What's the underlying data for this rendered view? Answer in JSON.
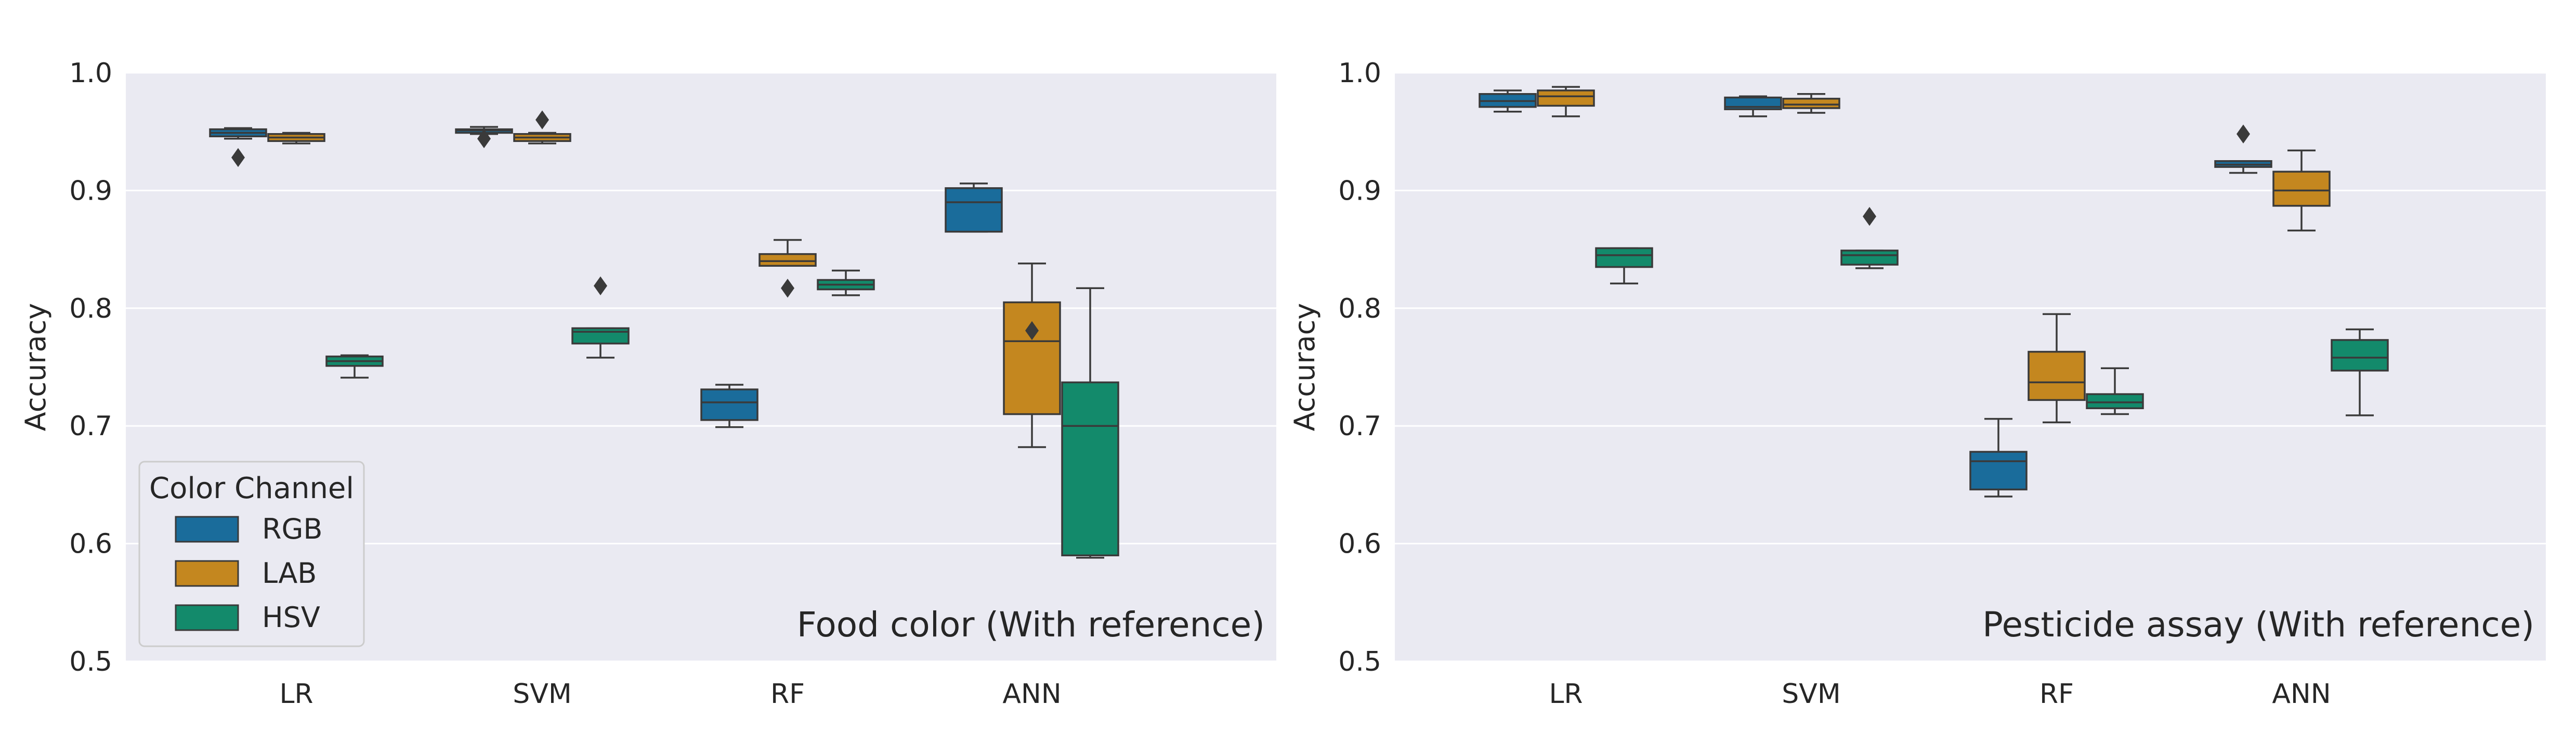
{
  "colors": {
    "RGB": "#1a6c9b",
    "LAB": "#c4871f",
    "HSV": "#138a6b",
    "plot_bg": "#eaeaf2",
    "grid": "#ffffff",
    "edge": "#3a3a3a"
  },
  "legend": {
    "title": "Color Channel",
    "entries": [
      "RGB",
      "LAB",
      "HSV"
    ],
    "placement": "lower-left of left panel"
  },
  "chart_data": [
    {
      "type": "box",
      "annotation": "Food color (With reference)",
      "ylabel": "Accuracy",
      "xlabel": "",
      "ylim": [
        0.5,
        1.0
      ],
      "yticks": [
        0.5,
        0.6,
        0.7,
        0.8,
        0.9,
        1.0
      ],
      "grid": true,
      "categories": [
        "LR",
        "SVM",
        "RF",
        "ANN"
      ],
      "series": [
        {
          "name": "RGB",
          "boxes": [
            {
              "whislo": 0.944,
              "q1": 0.946,
              "med": 0.949,
              "q3": 0.952,
              "whishi": 0.953,
              "fliers": [
                0.928
              ]
            },
            {
              "whislo": 0.948,
              "q1": 0.949,
              "med": 0.951,
              "q3": 0.952,
              "whishi": 0.954,
              "fliers": [
                0.944
              ]
            },
            {
              "whislo": 0.699,
              "q1": 0.705,
              "med": 0.72,
              "q3": 0.731,
              "whishi": 0.735,
              "fliers": []
            },
            {
              "whislo": 0.865,
              "q1": 0.865,
              "med": 0.89,
              "q3": 0.902,
              "whishi": 0.906,
              "fliers": []
            }
          ]
        },
        {
          "name": "LAB",
          "boxes": [
            {
              "whislo": 0.94,
              "q1": 0.942,
              "med": 0.945,
              "q3": 0.948,
              "whishi": 0.949,
              "fliers": []
            },
            {
              "whislo": 0.94,
              "q1": 0.942,
              "med": 0.945,
              "q3": 0.948,
              "whishi": 0.949,
              "fliers": [
                0.96
              ]
            },
            {
              "whislo": 0.836,
              "q1": 0.836,
              "med": 0.84,
              "q3": 0.846,
              "whishi": 0.858,
              "fliers": [
                0.817
              ]
            },
            {
              "whislo": 0.682,
              "q1": 0.71,
              "med": 0.772,
              "q3": 0.805,
              "whishi": 0.838,
              "fliers": [
                0.781
              ]
            }
          ]
        },
        {
          "name": "HSV",
          "boxes": [
            {
              "whislo": 0.741,
              "q1": 0.751,
              "med": 0.755,
              "q3": 0.759,
              "whishi": 0.76,
              "fliers": []
            },
            {
              "whislo": 0.758,
              "q1": 0.77,
              "med": 0.78,
              "q3": 0.783,
              "whishi": 0.783,
              "fliers": [
                0.819
              ]
            },
            {
              "whislo": 0.811,
              "q1": 0.816,
              "med": 0.82,
              "q3": 0.824,
              "whishi": 0.832,
              "fliers": []
            },
            {
              "whislo": 0.588,
              "q1": 0.59,
              "med": 0.7,
              "q3": 0.737,
              "whishi": 0.817,
              "fliers": []
            }
          ]
        }
      ]
    },
    {
      "type": "box",
      "annotation": "Pesticide assay (With reference)",
      "ylabel": "Accuracy",
      "xlabel": "",
      "ylim": [
        0.5,
        1.0
      ],
      "yticks": [
        0.5,
        0.6,
        0.7,
        0.8,
        0.9,
        1.0
      ],
      "grid": true,
      "categories": [
        "LR",
        "SVM",
        "RF",
        "ANN"
      ],
      "series": [
        {
          "name": "RGB",
          "boxes": [
            {
              "whislo": 0.967,
              "q1": 0.971,
              "med": 0.976,
              "q3": 0.982,
              "whishi": 0.985,
              "fliers": []
            },
            {
              "whislo": 0.963,
              "q1": 0.969,
              "med": 0.971,
              "q3": 0.979,
              "whishi": 0.98,
              "fliers": []
            },
            {
              "whislo": 0.64,
              "q1": 0.646,
              "med": 0.67,
              "q3": 0.678,
              "whishi": 0.706,
              "fliers": []
            },
            {
              "whislo": 0.915,
              "q1": 0.92,
              "med": 0.922,
              "q3": 0.925,
              "whishi": 0.925,
              "fliers": [
                0.948
              ]
            }
          ]
        },
        {
          "name": "LAB",
          "boxes": [
            {
              "whislo": 0.963,
              "q1": 0.972,
              "med": 0.98,
              "q3": 0.985,
              "whishi": 0.988,
              "fliers": []
            },
            {
              "whislo": 0.966,
              "q1": 0.97,
              "med": 0.973,
              "q3": 0.978,
              "whishi": 0.982,
              "fliers": []
            },
            {
              "whislo": 0.703,
              "q1": 0.722,
              "med": 0.737,
              "q3": 0.763,
              "whishi": 0.795,
              "fliers": []
            },
            {
              "whislo": 0.866,
              "q1": 0.887,
              "med": 0.9,
              "q3": 0.916,
              "whishi": 0.934,
              "fliers": []
            }
          ]
        },
        {
          "name": "HSV",
          "boxes": [
            {
              "whislo": 0.821,
              "q1": 0.835,
              "med": 0.845,
              "q3": 0.851,
              "whishi": 0.851,
              "fliers": []
            },
            {
              "whislo": 0.834,
              "q1": 0.837,
              "med": 0.845,
              "q3": 0.849,
              "whishi": 0.849,
              "fliers": [
                0.878
              ]
            },
            {
              "whislo": 0.71,
              "q1": 0.715,
              "med": 0.72,
              "q3": 0.727,
              "whishi": 0.749,
              "fliers": []
            },
            {
              "whislo": 0.709,
              "q1": 0.747,
              "med": 0.758,
              "q3": 0.773,
              "whishi": 0.782,
              "fliers": []
            }
          ]
        }
      ]
    }
  ]
}
